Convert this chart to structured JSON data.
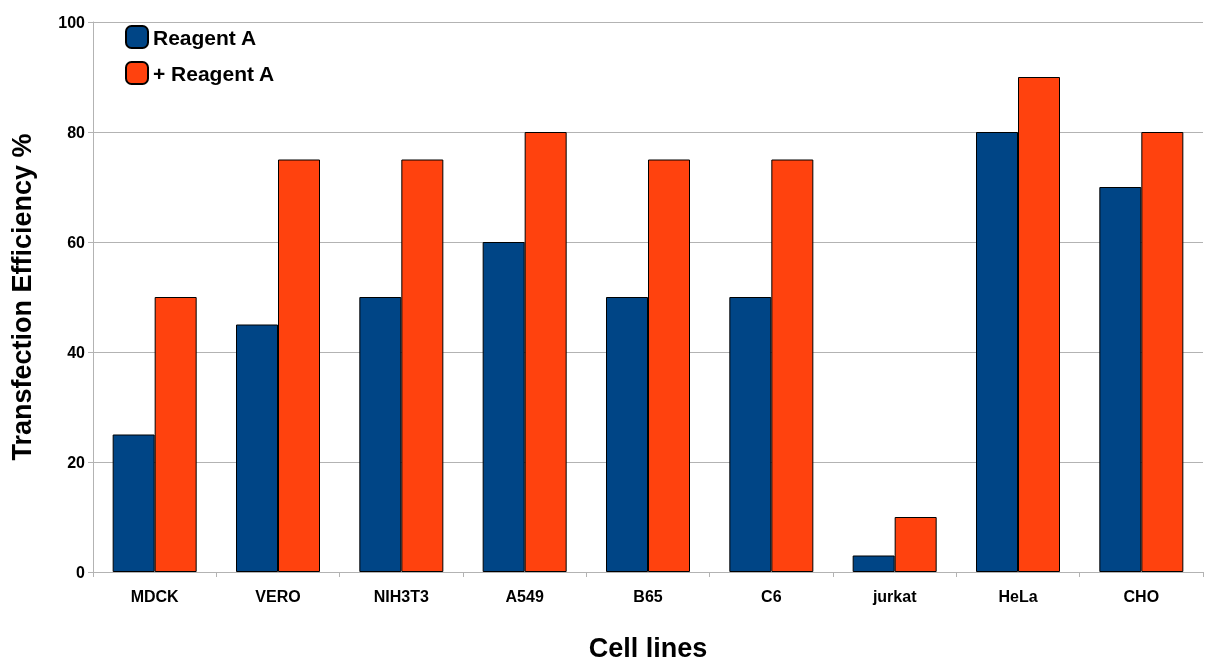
{
  "chart_data": {
    "type": "bar",
    "xlabel": "Cell lines",
    "ylabel": "Transfection Efficiency %",
    "categories": [
      "MDCK",
      "VERO",
      "NIH3T3",
      "A549",
      "B65",
      "C6",
      "jurkat",
      "HeLa",
      "CHO"
    ],
    "series": [
      {
        "name": "Reagent A",
        "color": "#004586",
        "values": [
          25,
          45,
          50,
          60,
          50,
          50,
          3,
          80,
          70
        ]
      },
      {
        "name": "+ Reagent A",
        "color": "#ff420e",
        "values": [
          50,
          75,
          75,
          80,
          75,
          75,
          10,
          90,
          80
        ]
      }
    ],
    "ylim": [
      0,
      100
    ],
    "yticks": [
      0,
      20,
      40,
      60,
      80,
      100
    ],
    "grid": "y",
    "legend": "top left"
  }
}
